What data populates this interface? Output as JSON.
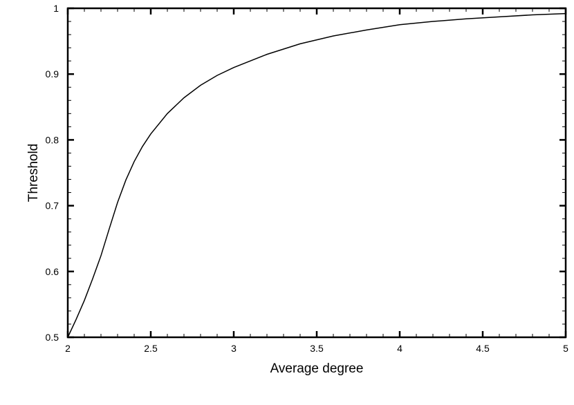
{
  "chart_data": {
    "type": "line",
    "title": "",
    "xlabel": "Average degree",
    "ylabel": "Threshold",
    "xlim": [
      2,
      5
    ],
    "ylim": [
      0.5,
      1
    ],
    "grid": false,
    "x_ticks": [
      2,
      2.5,
      3,
      3.5,
      4,
      4.5,
      5
    ],
    "x_tick_labels": [
      "2",
      "2.5",
      "3",
      "3.5",
      "4",
      "4.5",
      "5"
    ],
    "y_ticks": [
      0.5,
      0.6,
      0.7,
      0.8,
      0.9,
      1
    ],
    "y_tick_labels": [
      "0.5",
      "0.6",
      "0.7",
      "0.8",
      "0.9",
      "1"
    ],
    "line_color": "#000000",
    "series": [
      {
        "x": [
          2.0,
          2.05,
          2.1,
          2.15,
          2.2,
          2.25,
          2.3,
          2.35,
          2.4,
          2.45,
          2.5,
          2.6,
          2.7,
          2.8,
          2.9,
          3.0,
          3.2,
          3.4,
          3.6,
          3.8,
          4.0,
          4.2,
          4.4,
          4.6,
          4.8,
          5.0
        ],
        "y": [
          0.5,
          0.527,
          0.556,
          0.589,
          0.624,
          0.665,
          0.705,
          0.739,
          0.767,
          0.79,
          0.809,
          0.84,
          0.864,
          0.883,
          0.898,
          0.91,
          0.93,
          0.946,
          0.958,
          0.967,
          0.975,
          0.98,
          0.984,
          0.987,
          0.99,
          0.992
        ]
      }
    ]
  }
}
